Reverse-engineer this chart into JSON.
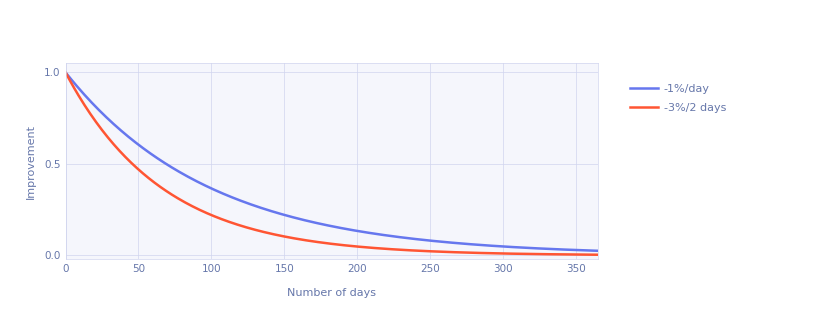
{
  "title": "",
  "xlabel": "Number of days",
  "ylabel": "Improvement",
  "xlim": [
    0,
    365
  ],
  "ylim": [
    -0.02,
    1.05
  ],
  "x_ticks": [
    0,
    50,
    100,
    150,
    200,
    250,
    300,
    350
  ],
  "y_ticks": [
    0,
    0.5,
    1
  ],
  "line1_label": "-1%/day",
  "line1_color": "#6677ee",
  "line1_rate": 0.99,
  "line2_label": "-3%/2 days",
  "line2_color": "#ff5533",
  "line2_rate": 0.985,
  "line_width": 1.8,
  "background_color": "#ffffff",
  "plot_bg_color": "#f5f6fc",
  "grid_color": "#d0d4ee",
  "axis_label_color": "#6677aa",
  "tick_color": "#6677aa",
  "font_size_label": 8,
  "font_size_tick": 7.5,
  "font_size_legend": 8
}
